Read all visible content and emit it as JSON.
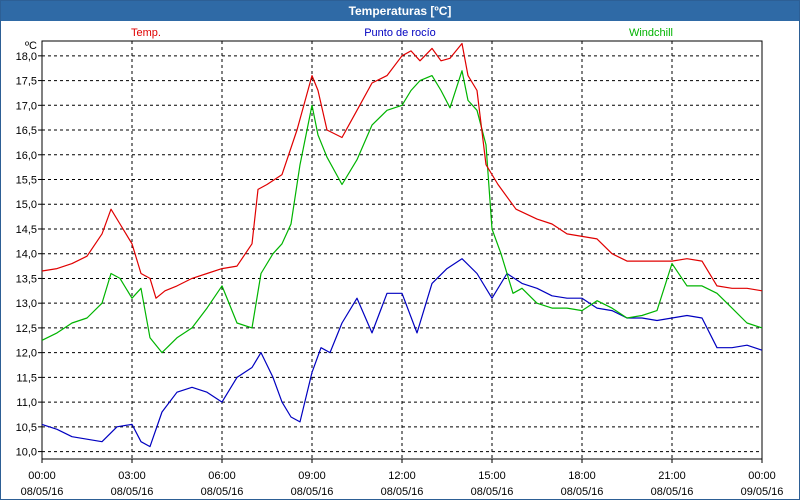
{
  "window": {
    "title": "Temperaturas [ºC]"
  },
  "chart_data": {
    "type": "line",
    "title": "Temperaturas [ºC]",
    "yunit": "ºC",
    "ylim": [
      9.85,
      18.3
    ],
    "yticks": [
      "10,0",
      "10,5",
      "11,0",
      "11,5",
      "12,0",
      "12,5",
      "13,0",
      "13,5",
      "14,0",
      "14,5",
      "15,0",
      "15,5",
      "16,0",
      "16,5",
      "17,0",
      "17,5",
      "18,0"
    ],
    "ytick_values": [
      10.0,
      10.5,
      11.0,
      11.5,
      12.0,
      12.5,
      13.0,
      13.5,
      14.0,
      14.5,
      15.0,
      15.5,
      16.0,
      16.5,
      17.0,
      17.5,
      18.0
    ],
    "xlim": [
      0,
      24
    ],
    "xticks": [
      {
        "time": "00:00",
        "date": "08/05/16"
      },
      {
        "time": "03:00",
        "date": "08/05/16"
      },
      {
        "time": "06:00",
        "date": "08/05/16"
      },
      {
        "time": "09:00",
        "date": "08/05/16"
      },
      {
        "time": "12:00",
        "date": "08/05/16"
      },
      {
        "time": "15:00",
        "date": "08/05/16"
      },
      {
        "time": "18:00",
        "date": "08/05/16"
      },
      {
        "time": "21:00",
        "date": "08/05/16"
      },
      {
        "time": "00:00",
        "date": "09/05/16"
      }
    ],
    "xtick_values": [
      0,
      3,
      6,
      9,
      12,
      15,
      18,
      21,
      24
    ],
    "grid": true,
    "colors": {
      "temp": "#e00000",
      "dew": "#0000c0",
      "wind": "#00b400"
    },
    "series": [
      {
        "name": "Temp.",
        "key": "temp",
        "x": [
          0,
          0.5,
          1,
          1.5,
          2,
          2.3,
          2.6,
          3,
          3.3,
          3.6,
          3.8,
          4.1,
          4.5,
          5,
          5.5,
          6,
          6.5,
          7,
          7.2,
          7.5,
          8,
          8.5,
          9,
          9.2,
          9.5,
          10,
          10.5,
          11,
          11.5,
          12,
          12.3,
          12.6,
          13,
          13.3,
          13.6,
          14,
          14.2,
          14.5,
          14.8,
          15.2,
          15.8,
          16.5,
          17,
          17.5,
          18,
          18.5,
          19,
          19.5,
          20,
          20.5,
          21,
          21.5,
          22,
          22.5,
          23,
          23.5,
          24
        ],
        "y": [
          13.65,
          13.7,
          13.8,
          13.95,
          14.4,
          14.9,
          14.6,
          14.2,
          13.6,
          13.5,
          13.1,
          13.25,
          13.35,
          13.5,
          13.6,
          13.7,
          13.75,
          14.2,
          15.3,
          15.4,
          15.6,
          16.5,
          17.6,
          17.3,
          16.5,
          16.35,
          16.9,
          17.45,
          17.6,
          18.0,
          18.1,
          17.9,
          18.15,
          17.9,
          17.95,
          18.25,
          17.6,
          17.3,
          15.8,
          15.4,
          14.9,
          14.7,
          14.6,
          14.4,
          14.35,
          14.3,
          14.0,
          13.85,
          13.85,
          13.85,
          13.85,
          13.9,
          13.85,
          13.35,
          13.3,
          13.3,
          13.25
        ]
      },
      {
        "name": "Punto de rocío",
        "key": "dew",
        "x": [
          0,
          0.5,
          1,
          1.5,
          2,
          2.5,
          3,
          3.3,
          3.6,
          4,
          4.5,
          5,
          5.5,
          6,
          6.5,
          7,
          7.3,
          7.7,
          8,
          8.3,
          8.6,
          9,
          9.3,
          9.6,
          10,
          10.5,
          11,
          11.5,
          12,
          12.5,
          13,
          13.5,
          14,
          14.5,
          15,
          15.5,
          16,
          16.5,
          17,
          17.5,
          18,
          18.5,
          19,
          19.5,
          20,
          20.5,
          21,
          21.5,
          22,
          22.5,
          23,
          23.5,
          24
        ],
        "y": [
          10.55,
          10.45,
          10.3,
          10.25,
          10.2,
          10.5,
          10.55,
          10.2,
          10.1,
          10.8,
          11.2,
          11.3,
          11.2,
          11.0,
          11.5,
          11.7,
          12.0,
          11.5,
          11.0,
          10.7,
          10.6,
          11.6,
          12.1,
          12.0,
          12.6,
          13.1,
          12.4,
          13.2,
          13.2,
          12.4,
          13.4,
          13.7,
          13.9,
          13.6,
          13.1,
          13.6,
          13.4,
          13.3,
          13.15,
          13.1,
          13.1,
          12.9,
          12.85,
          12.7,
          12.7,
          12.65,
          12.7,
          12.75,
          12.7,
          12.1,
          12.1,
          12.15,
          12.05
        ]
      },
      {
        "name": "Windchill",
        "key": "wind",
        "x": [
          0,
          0.5,
          1,
          1.5,
          2,
          2.3,
          2.6,
          3,
          3.3,
          3.6,
          4,
          4.5,
          5,
          5.5,
          6,
          6.5,
          7,
          7.3,
          7.7,
          8,
          8.3,
          8.6,
          9,
          9.2,
          9.5,
          10,
          10.5,
          11,
          11.5,
          12,
          12.3,
          12.6,
          13,
          13.3,
          13.6,
          14,
          14.2,
          14.5,
          14.8,
          15,
          15.3,
          15.7,
          16,
          16.5,
          17,
          17.5,
          18,
          18.5,
          19,
          19.5,
          20,
          20.5,
          21,
          21.5,
          22,
          22.5,
          23,
          23.5,
          24
        ],
        "y": [
          12.25,
          12.4,
          12.6,
          12.7,
          13.0,
          13.6,
          13.5,
          13.1,
          13.3,
          12.3,
          12.0,
          12.3,
          12.5,
          12.9,
          13.35,
          12.6,
          12.5,
          13.6,
          14.0,
          14.2,
          14.6,
          15.8,
          17.0,
          16.4,
          15.95,
          15.4,
          15.9,
          16.6,
          16.9,
          17.0,
          17.3,
          17.5,
          17.6,
          17.3,
          16.95,
          17.7,
          17.1,
          16.9,
          16.2,
          14.5,
          14.0,
          13.2,
          13.3,
          13.0,
          12.9,
          12.9,
          12.85,
          13.05,
          12.9,
          12.7,
          12.75,
          12.85,
          13.8,
          13.35,
          13.35,
          13.2,
          12.9,
          12.6,
          12.5
        ]
      }
    ]
  }
}
